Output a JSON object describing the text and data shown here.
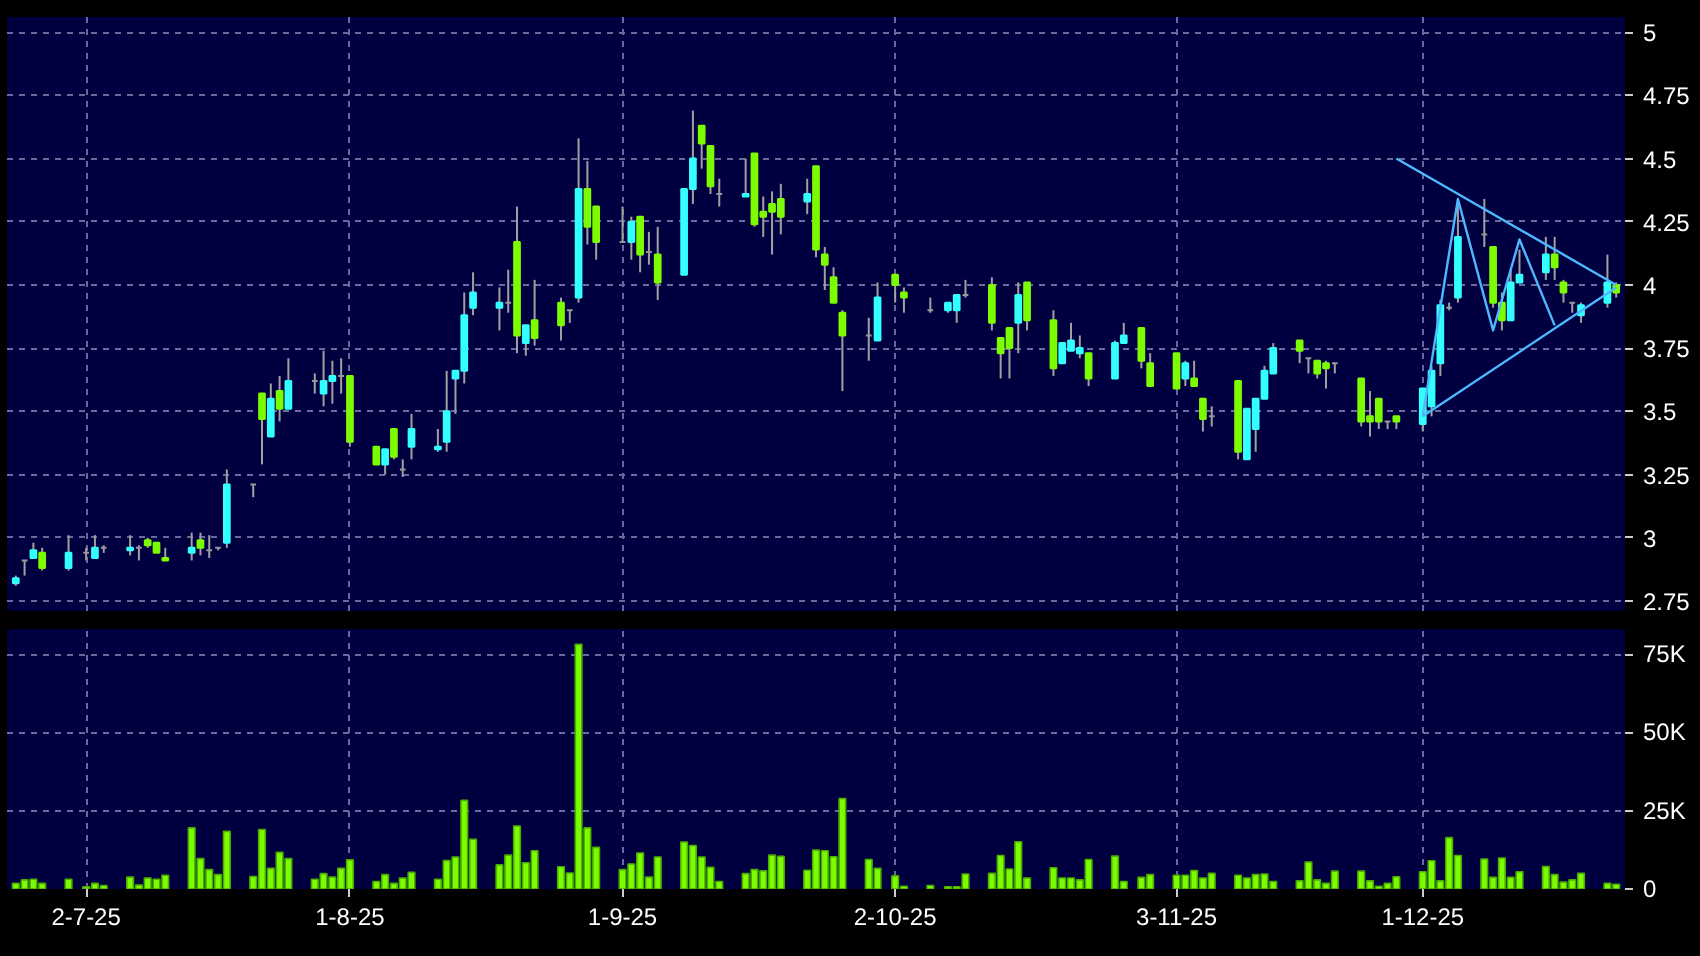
{
  "chart_data": [
    {
      "type": "candlestick",
      "x": [
        "2025-06-24",
        "2025-06-25",
        "2025-06-26",
        "2025-06-27",
        "2025-06-30",
        "2025-07-02",
        "2025-07-03",
        "2025-07-04",
        "2025-07-07",
        "2025-07-08",
        "2025-07-09",
        "2025-07-10",
        "2025-07-11",
        "2025-07-14",
        "2025-07-15",
        "2025-07-16",
        "2025-07-17",
        "2025-07-18",
        "2025-07-21",
        "2025-07-22",
        "2025-07-23",
        "2025-07-24",
        "2025-07-25",
        "2025-07-28",
        "2025-07-29",
        "2025-07-30",
        "2025-07-31",
        "2025-08-01",
        "2025-08-04",
        "2025-08-05",
        "2025-08-06",
        "2025-08-07",
        "2025-08-08",
        "2025-08-11",
        "2025-08-12",
        "2025-08-13",
        "2025-08-14",
        "2025-08-15",
        "2025-08-18",
        "2025-08-19",
        "2025-08-20",
        "2025-08-21",
        "2025-08-22",
        "2025-08-25",
        "2025-08-26",
        "2025-08-27",
        "2025-08-28",
        "2025-08-29",
        "2025-09-01",
        "2025-09-02",
        "2025-09-03",
        "2025-09-04",
        "2025-09-05",
        "2025-09-08",
        "2025-09-09",
        "2025-09-10",
        "2025-09-11",
        "2025-09-12",
        "2025-09-15",
        "2025-09-16",
        "2025-09-17",
        "2025-09-18",
        "2025-09-19",
        "2025-09-22",
        "2025-09-23",
        "2025-09-24",
        "2025-09-25",
        "2025-09-26",
        "2025-09-29",
        "2025-09-30",
        "2025-10-02",
        "2025-10-03",
        "2025-10-06",
        "2025-10-08",
        "2025-10-09",
        "2025-10-10",
        "2025-10-13",
        "2025-10-14",
        "2025-10-15",
        "2025-10-16",
        "2025-10-17",
        "2025-10-20",
        "2025-10-21",
        "2025-10-22",
        "2025-10-23",
        "2025-10-24",
        "2025-10-27",
        "2025-10-28",
        "2025-10-30",
        "2025-10-31",
        "2025-11-03",
        "2025-11-04",
        "2025-11-05",
        "2025-11-06",
        "2025-11-07",
        "2025-11-10",
        "2025-11-11",
        "2025-11-12",
        "2025-11-13",
        "2025-11-14",
        "2025-11-17",
        "2025-11-18",
        "2025-11-19",
        "2025-11-20",
        "2025-11-21",
        "2025-11-24",
        "2025-11-25",
        "2025-11-26",
        "2025-11-27",
        "2025-11-28",
        "2025-12-01",
        "2025-12-02",
        "2025-12-03",
        "2025-12-04",
        "2025-12-05",
        "2025-12-08",
        "2025-12-09",
        "2025-12-10",
        "2025-12-11",
        "2025-12-12",
        "2025-12-15",
        "2025-12-16",
        "2025-12-17",
        "2025-12-18",
        "2025-12-19",
        "2025-12-22",
        "2025-12-23"
      ],
      "ohlc": [
        [
          2.82,
          2.85,
          2.81,
          2.84
        ],
        [
          2.91,
          2.91,
          2.85,
          2.91
        ],
        [
          2.92,
          2.98,
          2.92,
          2.95
        ],
        [
          2.94,
          2.96,
          2.87,
          2.88
        ],
        [
          2.88,
          3.01,
          2.87,
          2.94
        ],
        [
          2.94,
          2.96,
          2.91,
          2.94
        ],
        [
          2.92,
          3.01,
          2.92,
          2.96
        ],
        [
          2.96,
          2.97,
          2.94,
          2.96
        ],
        [
          2.95,
          3.01,
          2.93,
          2.96
        ],
        [
          2.96,
          2.97,
          2.91,
          2.96
        ],
        [
          2.99,
          3.0,
          2.96,
          2.97
        ],
        [
          2.98,
          2.98,
          2.94,
          2.94
        ],
        [
          2.92,
          2.96,
          2.91,
          2.91
        ],
        [
          2.94,
          3.02,
          2.91,
          2.96
        ],
        [
          2.99,
          3.02,
          2.93,
          2.96
        ],
        [
          2.95,
          3.01,
          2.92,
          2.95
        ],
        [
          2.96,
          2.96,
          2.95,
          2.96
        ],
        [
          2.98,
          3.27,
          2.96,
          3.21
        ],
        [
          3.21,
          3.21,
          3.16,
          3.21
        ],
        [
          3.57,
          3.57,
          3.29,
          3.47
        ],
        [
          3.4,
          3.61,
          3.4,
          3.55
        ],
        [
          3.58,
          3.64,
          3.46,
          3.51
        ],
        [
          3.51,
          3.71,
          3.51,
          3.62
        ],
        [
          3.62,
          3.65,
          3.57,
          3.62
        ],
        [
          3.57,
          3.74,
          3.52,
          3.62
        ],
        [
          3.62,
          3.7,
          3.53,
          3.64
        ],
        [
          3.64,
          3.71,
          3.57,
          3.64
        ],
        [
          3.64,
          3.64,
          3.36,
          3.38
        ],
        [
          3.36,
          3.36,
          3.29,
          3.29
        ],
        [
          3.29,
          3.35,
          3.25,
          3.35
        ],
        [
          3.43,
          3.43,
          3.31,
          3.32
        ],
        [
          3.27,
          3.31,
          3.24,
          3.27
        ],
        [
          3.36,
          3.49,
          3.31,
          3.43
        ],
        [
          3.35,
          3.43,
          3.34,
          3.36
        ],
        [
          3.38,
          3.66,
          3.34,
          3.5
        ],
        [
          3.63,
          3.66,
          3.49,
          3.66
        ],
        [
          3.66,
          3.97,
          3.61,
          3.88
        ],
        [
          3.91,
          4.05,
          3.88,
          3.97
        ],
        [
          3.91,
          3.99,
          3.82,
          3.93
        ],
        [
          3.93,
          4.06,
          3.89,
          3.93
        ],
        [
          4.17,
          4.31,
          3.73,
          3.8
        ],
        [
          3.77,
          3.84,
          3.72,
          3.84
        ],
        [
          3.86,
          4.02,
          3.76,
          3.79
        ],
        [
          3.93,
          3.95,
          3.78,
          3.84
        ],
        [
          3.9,
          3.9,
          3.85,
          3.9
        ],
        [
          3.95,
          4.58,
          3.93,
          4.38
        ],
        [
          4.38,
          4.49,
          4.16,
          4.23
        ],
        [
          4.31,
          4.31,
          4.1,
          4.17
        ],
        [
          4.17,
          4.31,
          4.17,
          4.17
        ],
        [
          4.17,
          4.27,
          4.1,
          4.25
        ],
        [
          4.27,
          4.27,
          4.05,
          4.12
        ],
        [
          4.13,
          4.21,
          4.08,
          4.13
        ],
        [
          4.12,
          4.23,
          3.94,
          4.01
        ],
        [
          4.04,
          4.38,
          4.04,
          4.38
        ],
        [
          4.38,
          4.69,
          4.32,
          4.5
        ],
        [
          4.63,
          4.63,
          4.46,
          4.56
        ],
        [
          4.55,
          4.55,
          4.36,
          4.39
        ],
        [
          4.36,
          4.42,
          4.31,
          4.36
        ],
        [
          4.35,
          4.5,
          4.35,
          4.36
        ],
        [
          4.52,
          4.52,
          4.23,
          4.24
        ],
        [
          4.29,
          4.35,
          4.19,
          4.27
        ],
        [
          4.32,
          4.37,
          4.12,
          4.29
        ],
        [
          4.34,
          4.4,
          4.2,
          4.27
        ],
        [
          4.33,
          4.42,
          4.28,
          4.36
        ],
        [
          4.47,
          4.47,
          4.11,
          4.14
        ],
        [
          4.12,
          4.15,
          3.98,
          4.08
        ],
        [
          4.03,
          4.07,
          3.93,
          3.93
        ],
        [
          3.89,
          3.9,
          3.58,
          3.8
        ],
        [
          3.8,
          3.87,
          3.7,
          3.8
        ],
        [
          3.78,
          4.01,
          3.78,
          3.95
        ],
        [
          4.04,
          4.04,
          3.93,
          4.0
        ],
        [
          3.97,
          3.99,
          3.89,
          3.95
        ],
        [
          3.9,
          3.95,
          3.89,
          3.9
        ],
        [
          3.9,
          3.93,
          3.89,
          3.93
        ],
        [
          3.9,
          3.96,
          3.85,
          3.96
        ],
        [
          3.96,
          4.02,
          3.95,
          3.96
        ],
        [
          4.0,
          4.03,
          3.82,
          3.85
        ],
        [
          3.79,
          3.79,
          3.63,
          3.73
        ],
        [
          3.83,
          3.83,
          3.63,
          3.75
        ],
        [
          3.85,
          4.01,
          3.73,
          3.96
        ],
        [
          4.01,
          4.01,
          3.82,
          3.86
        ],
        [
          3.86,
          3.9,
          3.64,
          3.67
        ],
        [
          3.69,
          3.77,
          3.69,
          3.77
        ],
        [
          3.74,
          3.85,
          3.74,
          3.78
        ],
        [
          3.73,
          3.8,
          3.71,
          3.75
        ],
        [
          3.73,
          3.73,
          3.6,
          3.63
        ],
        [
          3.63,
          3.78,
          3.63,
          3.77
        ],
        [
          3.77,
          3.85,
          3.77,
          3.8
        ],
        [
          3.83,
          3.83,
          3.67,
          3.7
        ],
        [
          3.69,
          3.73,
          3.6,
          3.6
        ],
        [
          3.73,
          3.73,
          3.59,
          3.59
        ],
        [
          3.63,
          3.7,
          3.6,
          3.69
        ],
        [
          3.63,
          3.7,
          3.6,
          3.6
        ],
        [
          3.55,
          3.55,
          3.42,
          3.47
        ],
        [
          3.48,
          3.52,
          3.44,
          3.48
        ],
        [
          3.62,
          3.62,
          3.31,
          3.34
        ],
        [
          3.31,
          3.51,
          3.31,
          3.51
        ],
        [
          3.43,
          3.55,
          3.34,
          3.55
        ],
        [
          3.55,
          3.68,
          3.55,
          3.66
        ],
        [
          3.65,
          3.77,
          3.65,
          3.75
        ],
        [
          3.78,
          3.78,
          3.69,
          3.74
        ],
        [
          3.71,
          3.71,
          3.65,
          3.71
        ],
        [
          3.7,
          3.7,
          3.63,
          3.65
        ],
        [
          3.69,
          3.7,
          3.59,
          3.67
        ],
        [
          3.69,
          3.69,
          3.65,
          3.69
        ],
        [
          3.63,
          3.63,
          3.44,
          3.46
        ],
        [
          3.48,
          3.58,
          3.4,
          3.46
        ],
        [
          3.55,
          3.55,
          3.43,
          3.46
        ],
        [
          3.46,
          3.46,
          3.43,
          3.46
        ],
        [
          3.48,
          3.48,
          3.43,
          3.46
        ],
        [
          3.45,
          3.59,
          3.42,
          3.59
        ],
        [
          3.52,
          3.68,
          3.48,
          3.66
        ],
        [
          3.69,
          3.94,
          3.64,
          3.92
        ],
        [
          3.91,
          3.93,
          3.9,
          3.91
        ],
        [
          3.95,
          4.33,
          3.93,
          4.19
        ],
        [
          4.2,
          4.34,
          4.15,
          4.2
        ],
        [
          4.15,
          4.15,
          3.91,
          3.93
        ],
        [
          3.93,
          3.97,
          3.82,
          3.86
        ],
        [
          3.86,
          4.06,
          3.86,
          4.01
        ],
        [
          4.01,
          4.14,
          4.01,
          4.04
        ],
        [
          4.05,
          4.19,
          4.02,
          4.12
        ],
        [
          4.12,
          4.19,
          4.02,
          4.07
        ],
        [
          4.01,
          4.02,
          3.93,
          3.97
        ],
        [
          3.93,
          3.93,
          3.89,
          3.93
        ],
        [
          3.88,
          3.93,
          3.85,
          3.92
        ],
        [
          3.93,
          4.12,
          3.91,
          4.01
        ],
        [
          4.0,
          4.01,
          3.95,
          3.97
        ]
      ],
      "colors": [
        "#33ffff",
        "#999999",
        "#33ffff",
        "#7cfc00",
        "#33ffff",
        "#999999",
        "#33ffff",
        "#999999",
        "#33ffff",
        "#999999",
        "#7cfc00",
        "#7cfc00",
        "#7cfc00",
        "#33ffff",
        "#7cfc00",
        "#999999",
        "#999999",
        "#33ffff",
        "#999999",
        "#7cfc00",
        "#33ffff",
        "#7cfc00",
        "#33ffff",
        "#999999",
        "#33ffff",
        "#33ffff",
        "#999999",
        "#7cfc00",
        "#7cfc00",
        "#33ffff",
        "#7cfc00",
        "#999999",
        "#33ffff",
        "#33ffff",
        "#33ffff",
        "#33ffff",
        "#33ffff",
        "#33ffff",
        "#33ffff",
        "#999999",
        "#7cfc00",
        "#33ffff",
        "#7cfc00",
        "#7cfc00",
        "#999999",
        "#33ffff",
        "#7cfc00",
        "#7cfc00",
        "#999999",
        "#33ffff",
        "#7cfc00",
        "#999999",
        "#7cfc00",
        "#33ffff",
        "#33ffff",
        "#7cfc00",
        "#7cfc00",
        "#999999",
        "#33ffff",
        "#7cfc00",
        "#7cfc00",
        "#7cfc00",
        "#7cfc00",
        "#33ffff",
        "#7cfc00",
        "#7cfc00",
        "#7cfc00",
        "#7cfc00",
        "#999999",
        "#33ffff",
        "#7cfc00",
        "#7cfc00",
        "#999999",
        "#33ffff",
        "#33ffff",
        "#999999",
        "#7cfc00",
        "#7cfc00",
        "#7cfc00",
        "#33ffff",
        "#7cfc00",
        "#7cfc00",
        "#33ffff",
        "#33ffff",
        "#33ffff",
        "#7cfc00",
        "#33ffff",
        "#33ffff",
        "#7cfc00",
        "#7cfc00",
        "#7cfc00",
        "#33ffff",
        "#7cfc00",
        "#7cfc00",
        "#999999",
        "#7cfc00",
        "#33ffff",
        "#33ffff",
        "#33ffff",
        "#33ffff",
        "#7cfc00",
        "#999999",
        "#7cfc00",
        "#7cfc00",
        "#999999",
        "#7cfc00",
        "#7cfc00",
        "#7cfc00",
        "#999999",
        "#7cfc00",
        "#33ffff",
        "#33ffff",
        "#33ffff",
        "#999999",
        "#33ffff",
        "#999999",
        "#7cfc00",
        "#7cfc00",
        "#33ffff",
        "#33ffff",
        "#33ffff",
        "#7cfc00",
        "#7cfc00",
        "#999999",
        "#33ffff",
        "#33ffff",
        "#7cfc00"
      ],
      "series": [
        {
          "type": "line",
          "color": "#4db8ff",
          "x": [
            "2025-11-28",
            "2025-12-23"
          ],
          "values": [
            4.5,
            4.0
          ]
        },
        {
          "type": "line",
          "color": "#4db8ff",
          "x": [
            "2025-12-01",
            "2025-12-23"
          ],
          "values": [
            3.48,
            3.99
          ]
        },
        {
          "type": "line",
          "color": "#4db8ff",
          "x": [
            "2025-12-01",
            "2025-12-05",
            "2025-12-09",
            "2025-12-12",
            "2025-12-16"
          ],
          "values": [
            3.48,
            4.34,
            3.82,
            4.18,
            3.84
          ]
        }
      ],
      "xlim": [
        "2025-06-23",
        "2025-12-24"
      ],
      "ylim": [
        2.71,
        5.06
      ],
      "xticks": [
        {
          "value": "2025-07-02",
          "label": null
        },
        {
          "value": "2025-08-01",
          "label": null
        },
        {
          "value": "2025-09-01",
          "label": null
        },
        {
          "value": "2025-10-02",
          "label": null
        },
        {
          "value": "2025-11-03",
          "label": null
        },
        {
          "value": "2025-12-01",
          "label": null
        }
      ],
      "yticks": [
        2.75,
        3,
        3.25,
        3.5,
        3.75,
        4,
        4.25,
        4.5,
        4.75,
        5
      ],
      "tick_labels": "y",
      "grid": true
    },
    {
      "type": "bar",
      "color": "#7cfc00",
      "x": [
        "2025-06-24",
        "2025-06-25",
        "2025-06-26",
        "2025-06-27",
        "2025-06-30",
        "2025-07-02",
        "2025-07-03",
        "2025-07-04",
        "2025-07-07",
        "2025-07-08",
        "2025-07-09",
        "2025-07-10",
        "2025-07-11",
        "2025-07-14",
        "2025-07-15",
        "2025-07-16",
        "2025-07-17",
        "2025-07-18",
        "2025-07-21",
        "2025-07-22",
        "2025-07-23",
        "2025-07-24",
        "2025-07-25",
        "2025-07-28",
        "2025-07-29",
        "2025-07-30",
        "2025-07-31",
        "2025-08-01",
        "2025-08-04",
        "2025-08-05",
        "2025-08-06",
        "2025-08-07",
        "2025-08-08",
        "2025-08-11",
        "2025-08-12",
        "2025-08-13",
        "2025-08-14",
        "2025-08-15",
        "2025-08-18",
        "2025-08-19",
        "2025-08-20",
        "2025-08-21",
        "2025-08-22",
        "2025-08-25",
        "2025-08-26",
        "2025-08-27",
        "2025-08-28",
        "2025-08-29",
        "2025-09-01",
        "2025-09-02",
        "2025-09-03",
        "2025-09-04",
        "2025-09-05",
        "2025-09-08",
        "2025-09-09",
        "2025-09-10",
        "2025-09-11",
        "2025-09-12",
        "2025-09-15",
        "2025-09-16",
        "2025-09-17",
        "2025-09-18",
        "2025-09-19",
        "2025-09-22",
        "2025-09-23",
        "2025-09-24",
        "2025-09-25",
        "2025-09-26",
        "2025-09-29",
        "2025-09-30",
        "2025-10-02",
        "2025-10-03",
        "2025-10-06",
        "2025-10-08",
        "2025-10-09",
        "2025-10-10",
        "2025-10-13",
        "2025-10-14",
        "2025-10-15",
        "2025-10-16",
        "2025-10-17",
        "2025-10-20",
        "2025-10-21",
        "2025-10-22",
        "2025-10-23",
        "2025-10-24",
        "2025-10-27",
        "2025-10-28",
        "2025-10-30",
        "2025-10-31",
        "2025-11-03",
        "2025-11-04",
        "2025-11-05",
        "2025-11-06",
        "2025-11-07",
        "2025-11-10",
        "2025-11-11",
        "2025-11-12",
        "2025-11-13",
        "2025-11-14",
        "2025-11-17",
        "2025-11-18",
        "2025-11-19",
        "2025-11-20",
        "2025-11-21",
        "2025-11-24",
        "2025-11-25",
        "2025-11-26",
        "2025-11-27",
        "2025-11-28",
        "2025-12-01",
        "2025-12-02",
        "2025-12-03",
        "2025-12-04",
        "2025-12-05",
        "2025-12-08",
        "2025-12-09",
        "2025-12-10",
        "2025-12-11",
        "2025-12-12",
        "2025-12-15",
        "2025-12-16",
        "2025-12-17",
        "2025-12-18",
        "2025-12-19",
        "2025-12-22",
        "2025-12-23"
      ],
      "values": [
        1800,
        2900,
        3100,
        1800,
        3100,
        700,
        1800,
        1100,
        3800,
        1300,
        3500,
        3100,
        4400,
        19500,
        9700,
        6200,
        4600,
        18400,
        4000,
        19000,
        6600,
        11700,
        9700,
        3100,
        4900,
        3800,
        6600,
        9300,
        2400,
        4600,
        1800,
        3500,
        5300,
        3100,
        9100,
        10200,
        28300,
        15900,
        7700,
        10800,
        20100,
        8400,
        12200,
        7100,
        5100,
        78100,
        19500,
        13300,
        6200,
        8000,
        11500,
        3800,
        10200,
        15000,
        13900,
        10200,
        6900,
        2400,
        4900,
        6200,
        5800,
        10800,
        10400,
        6000,
        12400,
        12200,
        10300,
        28900,
        9400,
        6600,
        4200,
        900,
        1100,
        700,
        700,
        4800,
        5000,
        10700,
        6400,
        15100,
        3500,
        6800,
        3500,
        3500,
        2900,
        9400,
        10500,
        2400,
        3700,
        4600,
        4400,
        4400,
        5900,
        3500,
        5000,
        4400,
        3500,
        4600,
        4800,
        2400,
        2600,
        8600,
        2900,
        1800,
        5700,
        5700,
        2600,
        900,
        1800,
        3900,
        5500,
        9000,
        2600,
        16400,
        10700,
        9600,
        3700,
        9900,
        3700,
        5500,
        7200,
        4600,
        2200,
        2900,
        5000,
        1800,
        1500
      ],
      "xlim": [
        "2025-06-23",
        "2025-12-24"
      ],
      "ylim": [
        0,
        83000
      ],
      "xticks": [
        {
          "value": "2025-07-02",
          "label": "2-7-25"
        },
        {
          "value": "2025-08-01",
          "label": "1-8-25"
        },
        {
          "value": "2025-09-01",
          "label": "1-9-25"
        },
        {
          "value": "2025-10-02",
          "label": "2-10-25"
        },
        {
          "value": "2025-11-03",
          "label": "3-11-25"
        },
        {
          "value": "2025-12-01",
          "label": "1-12-25"
        }
      ],
      "yticks": [
        0,
        {
          "value": 25000,
          "label": "25K"
        },
        {
          "value": 50000,
          "label": "50K"
        },
        {
          "value": 75000,
          "label": "75K"
        }
      ],
      "grid": true
    }
  ]
}
